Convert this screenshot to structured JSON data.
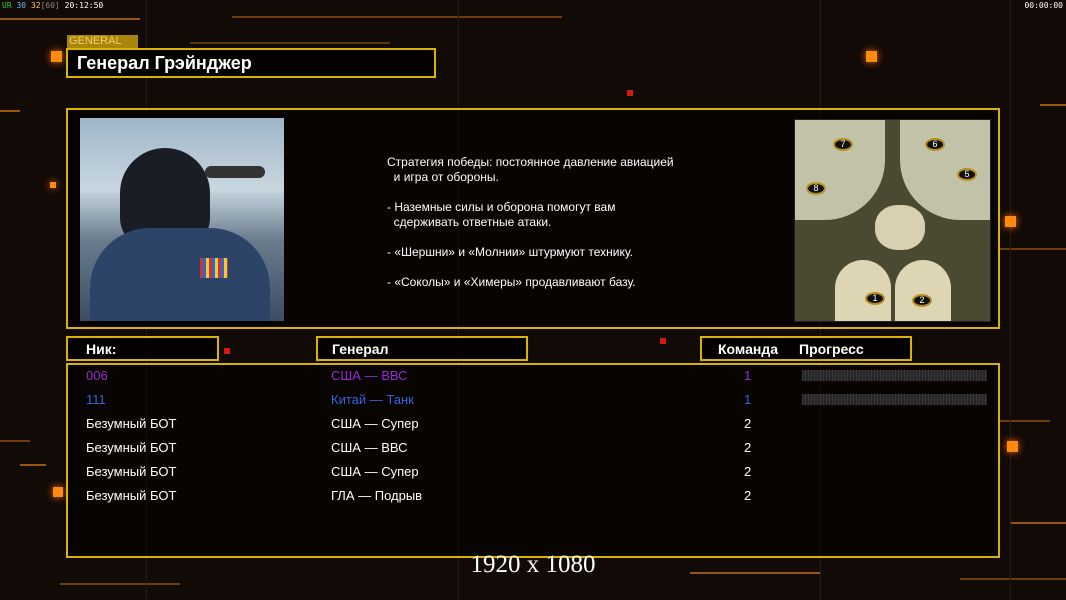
{
  "status_bar": {
    "ur": "UR",
    "fps": "30",
    "target": "32",
    "cap": "[60]",
    "clock": "20:12:50",
    "timer": "00:00:00"
  },
  "header": {
    "tag": "GENERAL",
    "title": "Генерал Грэйнджер"
  },
  "strategy": {
    "lines": [
      "Стратегия победы: постоянное давление авиацией",
      "  и игра от обороны.",
      "",
      "- Наземные силы и оборона помогут вам",
      "  сдерживать ответные атаки.",
      "",
      "- «Шершни» и «Молнии» штурмуют технику.",
      "",
      "- «Соколы» и «Химеры» продавливают базу."
    ]
  },
  "map": {
    "start_positions": [
      "1",
      "2",
      "5",
      "6",
      "7",
      "8"
    ]
  },
  "columns": {
    "nick": "Ник:",
    "general": "Генерал",
    "team": "Команда",
    "progress": "Прогресс"
  },
  "players": [
    {
      "nick": "006",
      "general": "США — ВВС",
      "team": "1",
      "color": "#9a2ad8",
      "progress": 0
    },
    {
      "nick": "111",
      "general": "Китай — Танк",
      "team": "1",
      "color": "#3a62e0",
      "progress": 0
    },
    {
      "nick": "Безумный БОТ",
      "general": "США — Супер",
      "team": "2",
      "color": "#ffffff"
    },
    {
      "nick": "Безумный БОТ",
      "general": "США — ВВС",
      "team": "2",
      "color": "#ffffff"
    },
    {
      "nick": "Безумный БОТ",
      "general": "США — Супер",
      "team": "2",
      "color": "#ffffff"
    },
    {
      "nick": "Безумный БОТ",
      "general": "ГЛА — Подрыв",
      "team": "2",
      "color": "#ffffff"
    }
  ],
  "resolution": "1920 x 1080",
  "colors": {
    "accent": "#d8b400",
    "background": "#110a06",
    "glow": "#ff8a10"
  }
}
